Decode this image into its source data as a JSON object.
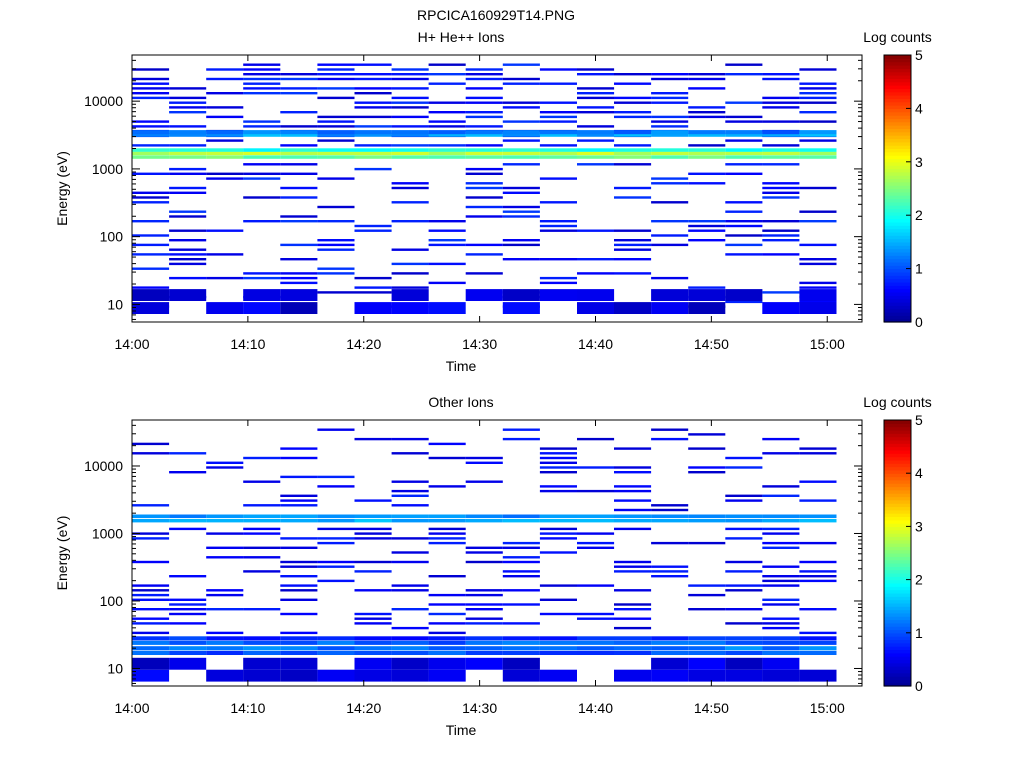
{
  "figure_title": "RPCICA160929T14.PNG",
  "colors": {
    "jet_stops": [
      "#00008f",
      "#0000ff",
      "#00ffff",
      "#ffff00",
      "#ff0000",
      "#800000"
    ],
    "background": "#ffffff"
  },
  "chart_data": [
    {
      "type": "heatmap",
      "title": "H+ He++ Ions",
      "xlabel": "Time",
      "ylabel": "Energy (eV)",
      "colorbar_label": "Log counts",
      "colorbar_ticks": [
        "0",
        "1",
        "2",
        "3",
        "4",
        "5"
      ],
      "clim": [
        0,
        5
      ],
      "xlim": [
        "14:00",
        "15:03"
      ],
      "x_ticks": [
        "14:00",
        "14:10",
        "14:20",
        "14:30",
        "14:40",
        "14:50",
        "15:00"
      ],
      "ylim": [
        5.5,
        48000
      ],
      "yscale": "log",
      "y_ticks": [
        "10",
        "100",
        "1000",
        "10000"
      ],
      "time_bins": [
        "14:00",
        "14:03:12",
        "14:06:24",
        "14:09:36",
        "14:12:48",
        "14:16:00",
        "14:19:12",
        "14:22:24",
        "14:25:36",
        "14:28:48",
        "14:32:00",
        "14:35:12",
        "14:38:24",
        "14:41:36",
        "14:44:48",
        "14:48:00",
        "14:51:12",
        "14:54:24",
        "14:57:36"
      ],
      "band_energies_eV": [
        1500,
        1700,
        1900
      ],
      "band_values": [
        2.4,
        2.8,
        2.0
      ],
      "band_secondary_energies_eV": [
        3200,
        3500
      ],
      "band_secondary_values": [
        1.4,
        1.2
      ],
      "high_energy_range_eV": [
        2000,
        40000
      ],
      "low_energy_range_eV": [
        8,
        1200
      ],
      "sparse_fill_fraction_high": 0.55,
      "sparse_fill_fraction_low": 0.3,
      "sparse_value_range": [
        0.3,
        0.9
      ],
      "lowest_bins_eV": [
        9,
        14
      ],
      "seed": 17
    },
    {
      "type": "heatmap",
      "title": "Other Ions",
      "xlabel": "Time",
      "ylabel": "Energy (eV)",
      "colorbar_label": "Log counts",
      "colorbar_ticks": [
        "0",
        "1",
        "2",
        "3",
        "4",
        "5"
      ],
      "clim": [
        0,
        5
      ],
      "xlim": [
        "14:00",
        "15:03"
      ],
      "x_ticks": [
        "14:00",
        "14:10",
        "14:20",
        "14:30",
        "14:40",
        "14:50",
        "15:00"
      ],
      "ylim": [
        5.5,
        48000
      ],
      "yscale": "log",
      "y_ticks": [
        "10",
        "100",
        "1000",
        "10000"
      ],
      "time_bins": [
        "14:00",
        "14:03:12",
        "14:06:24",
        "14:09:36",
        "14:12:48",
        "14:16:00",
        "14:19:12",
        "14:22:24",
        "14:25:36",
        "14:28:48",
        "14:32:00",
        "14:35:12",
        "14:38:24",
        "14:41:36",
        "14:44:48",
        "14:48:00",
        "14:51:12",
        "14:54:24",
        "14:57:36"
      ],
      "band_energies_eV": [
        1550,
        1800
      ],
      "band_values": [
        1.5,
        1.3
      ],
      "band_secondary_energies_eV": [
        17,
        20,
        24,
        28
      ],
      "band_secondary_values": [
        1.0,
        1.2,
        1.1,
        0.8
      ],
      "high_energy_range_eV": [
        2000,
        40000
      ],
      "low_energy_range_eV": [
        30,
        1200
      ],
      "sparse_fill_fraction_high": 0.22,
      "sparse_fill_fraction_low": 0.35,
      "sparse_value_range": [
        0.3,
        0.8
      ],
      "lowest_bins_eV": [
        8,
        12
      ],
      "seed": 41
    }
  ]
}
